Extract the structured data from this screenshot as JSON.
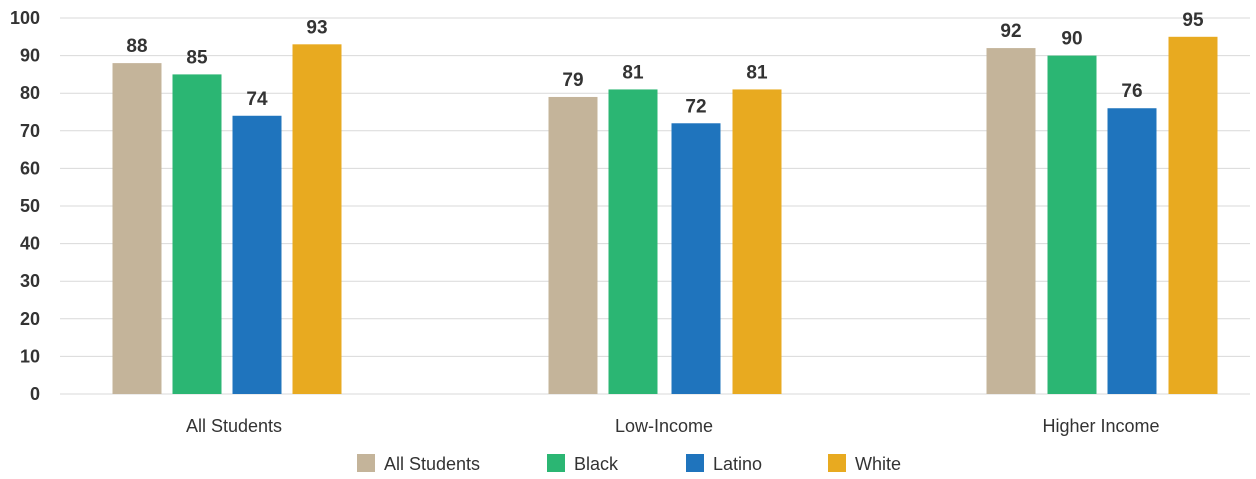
{
  "chart_data": {
    "type": "bar",
    "categories": [
      "All Students",
      "Low-Income",
      "Higher Income"
    ],
    "series": [
      {
        "name": "All Students",
        "color": "#c4b49a",
        "values": [
          88,
          79,
          92
        ]
      },
      {
        "name": "Black",
        "color": "#2bb673",
        "values": [
          85,
          81,
          90
        ]
      },
      {
        "name": "Latino",
        "color": "#1f74bd",
        "values": [
          74,
          72,
          76
        ]
      },
      {
        "name": "White",
        "color": "#e8aa20",
        "values": [
          93,
          81,
          95
        ]
      }
    ],
    "ylim": [
      0,
      100
    ],
    "yticks": [
      0,
      10,
      20,
      30,
      40,
      50,
      60,
      70,
      80,
      90,
      100
    ],
    "grid": true,
    "legend": "bottom"
  }
}
